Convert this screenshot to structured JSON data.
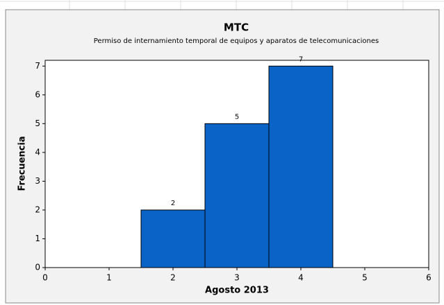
{
  "chart_data": {
    "type": "histogram",
    "title": "MTC",
    "subtitle": "Permiso de internamiento temporal de equipos y aparatos de telecomunicaciones",
    "xlabel": "Agosto 2013",
    "ylabel": "Frecuencia",
    "bins": [
      1.5,
      2.5,
      3.5,
      4.5
    ],
    "values": [
      2,
      5,
      7
    ],
    "color": "#0a64c8",
    "xlim": [
      0,
      6
    ],
    "xticks": [
      0,
      1,
      2,
      3,
      4,
      5,
      6
    ],
    "ylim": [
      0,
      7.2
    ],
    "yticks": [
      0,
      1,
      2,
      3,
      4,
      5,
      6,
      7
    ]
  }
}
